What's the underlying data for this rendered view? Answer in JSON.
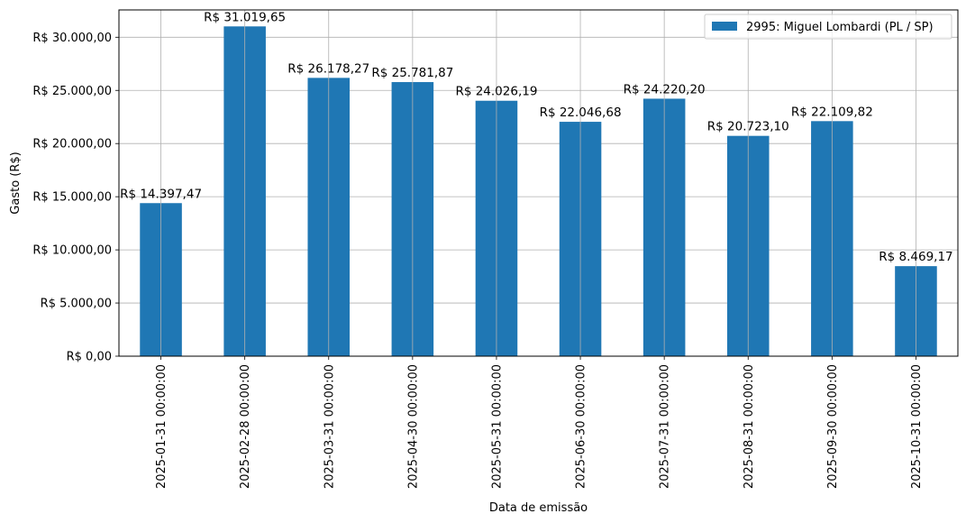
{
  "chart_data": {
    "type": "bar",
    "categories": [
      "2025-01-31 00:00:00",
      "2025-02-28 00:00:00",
      "2025-03-31 00:00:00",
      "2025-04-30 00:00:00",
      "2025-05-31 00:00:00",
      "2025-06-30 00:00:00",
      "2025-07-31 00:00:00",
      "2025-08-31 00:00:00",
      "2025-09-30 00:00:00",
      "2025-10-31 00:00:00"
    ],
    "series": [
      {
        "name": "2995: Miguel Lombardi (PL / SP)",
        "values": [
          14397.47,
          31019.65,
          26178.27,
          25781.87,
          24026.19,
          22046.68,
          24220.2,
          20723.1,
          22109.82,
          8469.17
        ],
        "labels": [
          "R$ 14.397,47",
          "R$ 31.019,65",
          "R$ 26.178,27",
          "R$ 25.781,87",
          "R$ 24.026,19",
          "R$ 22.046,68",
          "R$ 24.220,20",
          "R$ 20.723,10",
          "R$ 22.109,82",
          "R$ 8.469,17"
        ],
        "color": "#1f77b4"
      }
    ],
    "title": "",
    "xlabel": "Data de emissão",
    "ylabel": "Gasto (R$)",
    "ylim": [
      0,
      32570
    ],
    "yticks": [
      0,
      5000,
      10000,
      15000,
      20000,
      25000,
      30000
    ],
    "ytick_labels": [
      "R$ 0,00",
      "R$ 5.000,00",
      "R$ 10.000,00",
      "R$ 15.000,00",
      "R$ 20.000,00",
      "R$ 25.000,00",
      "R$ 30.000,00"
    ],
    "grid": true,
    "legend_position": "top-right"
  }
}
